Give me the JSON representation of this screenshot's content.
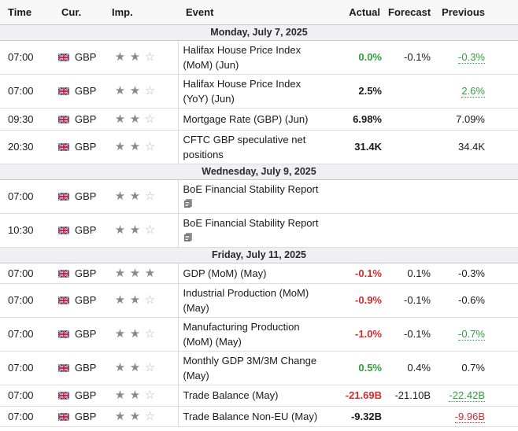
{
  "headers": {
    "time": "Time",
    "cur": "Cur.",
    "imp": "Imp.",
    "event": "Event",
    "actual": "Actual",
    "forecast": "Forecast",
    "previous": "Previous"
  },
  "colors": {
    "positive": "#2e9e3c",
    "negative": "#d12b2b",
    "day_bg": "#f0f0f2"
  },
  "days": [
    {
      "label": "Monday, July 7, 2025",
      "events": [
        {
          "time": "07:00",
          "cur": "GBP",
          "stars": 2,
          "event": "Halifax House Price Index (MoM) (Jun)",
          "actual": "0.0%",
          "actual_color": "green",
          "forecast": "-0.1%",
          "previous": "-0.3%",
          "previous_color": "green",
          "previous_revised": true,
          "icon": false
        },
        {
          "time": "07:00",
          "cur": "GBP",
          "stars": 2,
          "event": "Halifax House Price Index (YoY) (Jun)",
          "actual": "2.5%",
          "actual_color": "",
          "forecast": "",
          "previous": "2.6%",
          "previous_color": "green",
          "previous_revised": true,
          "icon": false
        },
        {
          "time": "09:30",
          "cur": "GBP",
          "stars": 2,
          "event": "Mortgage Rate (GBP) (Jun)",
          "actual": "6.98%",
          "actual_color": "",
          "forecast": "",
          "previous": "7.09%",
          "previous_color": "",
          "previous_revised": false,
          "icon": false
        },
        {
          "time": "20:30",
          "cur": "GBP",
          "stars": 2,
          "event": "CFTC GBP speculative net positions",
          "actual": "31.4K",
          "actual_color": "",
          "forecast": "",
          "previous": "34.4K",
          "previous_color": "",
          "previous_revised": false,
          "icon": false
        }
      ]
    },
    {
      "label": "Wednesday, July 9, 2025",
      "events": [
        {
          "time": "07:00",
          "cur": "GBP",
          "stars": 2,
          "event": "BoE Financial Stability Report",
          "actual": "",
          "actual_color": "",
          "forecast": "",
          "previous": "",
          "previous_color": "",
          "previous_revised": false,
          "icon": true
        },
        {
          "time": "10:30",
          "cur": "GBP",
          "stars": 2,
          "event": "BoE Financial Stability Report",
          "actual": "",
          "actual_color": "",
          "forecast": "",
          "previous": "",
          "previous_color": "",
          "previous_revised": false,
          "icon": true
        }
      ]
    },
    {
      "label": "Friday, July 11, 2025",
      "events": [
        {
          "time": "07:00",
          "cur": "GBP",
          "stars": 3,
          "event": "GDP (MoM) (May)",
          "actual": "-0.1%",
          "actual_color": "red",
          "forecast": "0.1%",
          "previous": "-0.3%",
          "previous_color": "",
          "previous_revised": false,
          "icon": false
        },
        {
          "time": "07:00",
          "cur": "GBP",
          "stars": 2,
          "event": "Industrial Production (MoM) (May)",
          "actual": "-0.9%",
          "actual_color": "red",
          "forecast": "-0.1%",
          "previous": "-0.6%",
          "previous_color": "",
          "previous_revised": false,
          "icon": false
        },
        {
          "time": "07:00",
          "cur": "GBP",
          "stars": 2,
          "event": "Manufacturing Production (MoM) (May)",
          "actual": "-1.0%",
          "actual_color": "red",
          "forecast": "-0.1%",
          "previous": "-0.7%",
          "previous_color": "green",
          "previous_revised": true,
          "icon": false
        },
        {
          "time": "07:00",
          "cur": "GBP",
          "stars": 2,
          "event": "Monthly GDP 3M/3M Change (May)",
          "actual": "0.5%",
          "actual_color": "green",
          "forecast": "0.4%",
          "previous": "0.7%",
          "previous_color": "",
          "previous_revised": false,
          "icon": false
        },
        {
          "time": "07:00",
          "cur": "GBP",
          "stars": 2,
          "event": "Trade Balance (May)",
          "actual": "-21.69B",
          "actual_color": "red",
          "forecast": "-21.10B",
          "previous": "-22.42B",
          "previous_color": "green",
          "previous_revised": true,
          "icon": false
        },
        {
          "time": "07:00",
          "cur": "GBP",
          "stars": 2,
          "event": "Trade Balance Non-EU (May)",
          "actual": "-9.32B",
          "actual_color": "",
          "forecast": "",
          "previous": "-9.96B",
          "previous_color": "red",
          "previous_revised": true,
          "icon": false
        }
      ]
    }
  ]
}
